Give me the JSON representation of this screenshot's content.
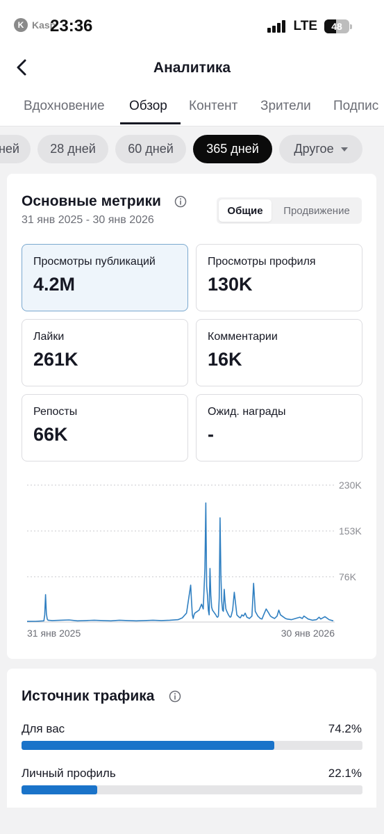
{
  "status": {
    "carrier_logo": "K",
    "carrier": "Kasp",
    "time": "23:36",
    "network": "LTE",
    "battery": "48",
    "battery_level": 0.48
  },
  "header": {
    "title": "Аналитика",
    "tabs": [
      {
        "label": "Вдохновение",
        "active": false
      },
      {
        "label": "Обзор",
        "active": true
      },
      {
        "label": "Контент",
        "active": false
      },
      {
        "label": "Зрители",
        "active": false
      },
      {
        "label": "Подпис",
        "active": false
      }
    ]
  },
  "periods": [
    {
      "label": "ней",
      "active": false
    },
    {
      "label": "28 дней",
      "active": false
    },
    {
      "label": "60 дней",
      "active": false
    },
    {
      "label": "365 дней",
      "active": true
    },
    {
      "label": "Другое",
      "active": false
    }
  ],
  "metrics": {
    "title": "Основные метрики",
    "date_range": "31 янв 2025 - 30 янв 2026",
    "segment": [
      {
        "label": "Общие",
        "active": true
      },
      {
        "label": "Продвижение",
        "active": false
      }
    ],
    "tiles": [
      {
        "label": "Просмотры публикаций",
        "value": "4.2M",
        "selected": true
      },
      {
        "label": "Просмотры профиля",
        "value": "130K",
        "selected": false
      },
      {
        "label": "Лайки",
        "value": "261K",
        "selected": false
      },
      {
        "label": "Комментарии",
        "value": "16K",
        "selected": false
      },
      {
        "label": "Репосты",
        "value": "66K",
        "selected": false
      },
      {
        "label": "Ожид. награды",
        "value": "-",
        "selected": false
      }
    ]
  },
  "chart_data": {
    "type": "line",
    "color": "#2f7fc1",
    "y_ticks": [
      {
        "value": 230000,
        "label": "230K"
      },
      {
        "value": 153000,
        "label": "153K"
      },
      {
        "value": 76000,
        "label": "76K"
      }
    ],
    "ylim": [
      0,
      230000
    ],
    "x_start_label": "31 янв 2025",
    "x_end_label": "30 янв 2026",
    "x_range": [
      0,
      365
    ],
    "grid": true,
    "series": [
      {
        "x": [
          0,
          10,
          20,
          21,
          22,
          23,
          24,
          25,
          30,
          40,
          50,
          60,
          70,
          80,
          90,
          100,
          110,
          120,
          130,
          140,
          150,
          160,
          170,
          180,
          185,
          190,
          195,
          196,
          197,
          198,
          199,
          200,
          205,
          208,
          210,
          212,
          213,
          214,
          215,
          216,
          217,
          218,
          219,
          220,
          221,
          222,
          223,
          224,
          225,
          226,
          227,
          228,
          229,
          230,
          231,
          232,
          233,
          234,
          235,
          236,
          237,
          238,
          239,
          240,
          241,
          242,
          243,
          245,
          247,
          250,
          252,
          254,
          255,
          256,
          257,
          258,
          260,
          262,
          265,
          268,
          270,
          272,
          275,
          278,
          280,
          282,
          285,
          288,
          290,
          292,
          295,
          298,
          300,
          302,
          305,
          308,
          310,
          315,
          320,
          325,
          328,
          330,
          335,
          340,
          345,
          348,
          350,
          355,
          360,
          365
        ],
        "y": [
          1000,
          1200,
          2000,
          12000,
          46000,
          14000,
          5000,
          3000,
          2500,
          3000,
          3500,
          2000,
          2500,
          3000,
          2500,
          2000,
          3000,
          2500,
          2000,
          2500,
          3000,
          2500,
          3000,
          4000,
          7000,
          15000,
          62000,
          35000,
          12000,
          6000,
          12000,
          15000,
          20000,
          30000,
          22000,
          90000,
          200000,
          60000,
          45000,
          20000,
          12000,
          90000,
          45000,
          25000,
          20000,
          18000,
          16000,
          14000,
          12000,
          9000,
          8000,
          10000,
          40000,
          175000,
          80000,
          35000,
          20000,
          18000,
          55000,
          35000,
          22000,
          18000,
          15000,
          12000,
          10000,
          8000,
          9000,
          20000,
          50000,
          12000,
          9000,
          7000,
          9000,
          12000,
          11000,
          10000,
          15000,
          8000,
          6000,
          10000,
          65000,
          18000,
          10000,
          6000,
          5000,
          12000,
          22000,
          15000,
          10000,
          8000,
          6000,
          10000,
          20000,
          12000,
          9000,
          6000,
          5000,
          4000,
          6000,
          8000,
          6000,
          10000,
          5000,
          3000,
          4000,
          8000,
          5000,
          9000,
          4000,
          2000
        ]
      }
    ]
  },
  "traffic": {
    "title": "Источник трафика",
    "rows": [
      {
        "label": "Для вас",
        "percent": "74.2%",
        "value": 0.742
      },
      {
        "label": "Личный профиль",
        "percent": "22.1%",
        "value": 0.221
      }
    ]
  }
}
